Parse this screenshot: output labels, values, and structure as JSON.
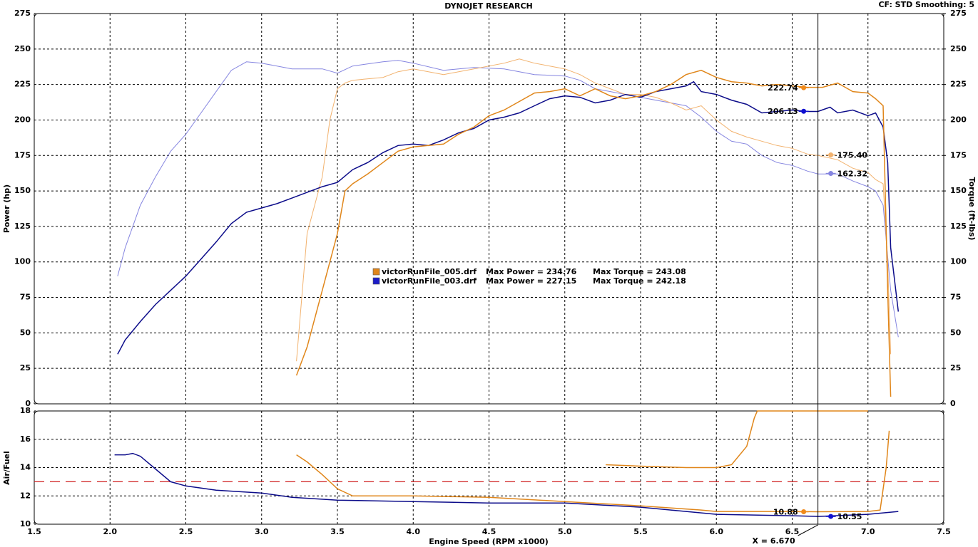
{
  "chart_data": [
    {
      "type": "line",
      "title": "DYNOJET RESEARCH",
      "subtitle": "CF: STD  Smoothing: 5",
      "ylabel": "Power (hp)",
      "y2label": "Torque (ft-lbs)",
      "xlim": [
        1.5,
        7.5
      ],
      "xticks": [
        1.5,
        2,
        2.5,
        3,
        3.5,
        4,
        4.5,
        5,
        5.5,
        6,
        6.5,
        7,
        7.5
      ],
      "ylim": [
        0,
        275
      ],
      "yticks": [
        0,
        25,
        50,
        75,
        100,
        125,
        150,
        175,
        200,
        225,
        250,
        275
      ],
      "y2lim": [
        0,
        275
      ],
      "y2ticks": [
        0,
        25,
        50,
        75,
        100,
        125,
        150,
        175,
        200,
        225,
        250,
        275
      ],
      "grid": true,
      "series": [
        {
          "color": "#8585e0",
          "width": 1,
          "axis": "y2",
          "x": [
            2.05,
            2.1,
            2.2,
            2.3,
            2.4,
            2.5,
            2.6,
            2.7,
            2.8,
            2.9,
            3.0,
            3.2,
            3.4,
            3.5,
            3.6,
            3.8,
            3.9,
            4.0,
            4.2,
            4.4,
            4.6,
            4.8,
            5.0,
            5.1,
            5.2,
            5.4,
            5.5,
            5.6,
            5.7,
            5.8,
            5.9,
            6.0,
            6.1,
            6.2,
            6.3,
            6.4,
            6.5,
            6.6,
            6.67,
            6.8,
            6.9,
            7.0,
            7.05,
            7.1,
            7.15,
            7.2
          ],
          "values": [
            90,
            110,
            140,
            160,
            178,
            190,
            205,
            220,
            235,
            241,
            240,
            236,
            236,
            233,
            238,
            241,
            242,
            240,
            235,
            237,
            236,
            232,
            231,
            228,
            222,
            218,
            216,
            214,
            212,
            210,
            202,
            192,
            185,
            183,
            175,
            170,
            168,
            164,
            162,
            162,
            157,
            153,
            150,
            140,
            80,
            47
          ]
        },
        {
          "color": "#f2b26e",
          "width": 1,
          "axis": "y2",
          "x": [
            3.23,
            3.3,
            3.4,
            3.45,
            3.5,
            3.55,
            3.6,
            3.8,
            3.9,
            4.0,
            4.2,
            4.4,
            4.6,
            4.7,
            4.8,
            5.0,
            5.1,
            5.2,
            5.3,
            5.4,
            5.5,
            5.6,
            5.7,
            5.8,
            5.9,
            6.0,
            6.1,
            6.2,
            6.3,
            6.4,
            6.5,
            6.6,
            6.67,
            6.8,
            6.9,
            7.0,
            7.05,
            7.1,
            7.13,
            7.15
          ],
          "values": [
            30,
            120,
            160,
            200,
            222,
            226,
            228,
            230,
            234,
            236,
            232,
            236,
            240,
            243,
            240,
            236,
            232,
            226,
            222,
            218,
            218,
            216,
            212,
            207,
            210,
            200,
            192,
            188,
            185,
            182,
            180,
            176,
            175,
            172,
            166,
            163,
            158,
            155,
            100,
            35
          ]
        },
        {
          "color": "#0c0c8a",
          "width": 1.5,
          "x": [
            2.05,
            2.1,
            2.2,
            2.3,
            2.4,
            2.5,
            2.6,
            2.7,
            2.8,
            2.9,
            3.0,
            3.1,
            3.2,
            3.3,
            3.4,
            3.5,
            3.6,
            3.7,
            3.8,
            3.9,
            4.0,
            4.1,
            4.2,
            4.3,
            4.4,
            4.5,
            4.6,
            4.7,
            4.8,
            4.9,
            5.0,
            5.1,
            5.2,
            5.3,
            5.4,
            5.5,
            5.6,
            5.7,
            5.8,
            5.85,
            5.9,
            6.0,
            6.1,
            6.2,
            6.3,
            6.4,
            6.5,
            6.6,
            6.67,
            6.75,
            6.8,
            6.9,
            7.0,
            7.05,
            7.1,
            7.13,
            7.15,
            7.2
          ],
          "values": [
            35,
            45,
            58,
            70,
            80,
            90,
            102,
            114,
            127,
            135,
            138,
            141,
            145,
            149,
            153,
            156,
            165,
            170,
            177,
            182,
            183,
            182,
            186,
            191,
            194,
            200,
            202,
            205,
            210,
            215,
            217,
            216,
            212,
            214,
            218,
            216,
            220,
            222,
            224,
            227,
            220,
            218,
            214,
            211,
            205,
            206,
            207,
            206,
            206,
            209,
            205,
            207,
            203,
            205,
            195,
            170,
            110,
            65
          ]
        },
        {
          "color": "#e0861a",
          "width": 1.5,
          "x": [
            3.23,
            3.3,
            3.4,
            3.5,
            3.55,
            3.6,
            3.7,
            3.8,
            3.9,
            4.0,
            4.1,
            4.2,
            4.3,
            4.4,
            4.5,
            4.6,
            4.7,
            4.8,
            4.9,
            5.0,
            5.1,
            5.2,
            5.3,
            5.4,
            5.5,
            5.6,
            5.7,
            5.8,
            5.9,
            6.0,
            6.1,
            6.2,
            6.3,
            6.4,
            6.5,
            6.6,
            6.7,
            6.8,
            6.9,
            7.0,
            7.05,
            7.1,
            7.13,
            7.15
          ],
          "values": [
            20,
            40,
            80,
            120,
            150,
            155,
            162,
            170,
            178,
            181,
            182,
            183,
            190,
            195,
            203,
            207,
            213,
            219,
            220,
            222,
            217,
            222,
            217,
            215,
            217,
            220,
            225,
            232,
            235,
            230,
            227,
            226,
            224,
            225,
            224,
            223,
            223,
            226,
            220,
            219,
            215,
            210,
            80,
            5
          ]
        }
      ],
      "legend": [
        {
          "color": "#e0861a",
          "file": "victorRunFile_005.drf",
          "power": "Max Power = 234.76",
          "torque": "Max Torque = 243.08"
        },
        {
          "color": "#1c1cc8",
          "file": "victorRunFile_003.drf",
          "power": "Max Power = 227.15",
          "torque": "Max Torque = 242.18"
        }
      ],
      "readouts": [
        {
          "value": 222.74,
          "color": "#f08a1c",
          "side": "left"
        },
        {
          "value": 206.13,
          "color": "#1010d0",
          "side": "left"
        },
        {
          "value": 175.4,
          "label": "175.40",
          "color": "#f2b26e",
          "side": "right",
          "axis": "y2"
        },
        {
          "value": 162.32,
          "color": "#8585e0",
          "side": "right",
          "axis": "y2"
        }
      ]
    },
    {
      "type": "line",
      "ylabel": "Air/Fuel",
      "xlabel": "Engine Speed (RPM x1000)",
      "xlim": [
        1.5,
        7.5
      ],
      "xticks": [
        1.5,
        {
          "value": 2,
          "label": "2.0"
        },
        2.5,
        {
          "value": 3,
          "label": "3.0"
        },
        3.5,
        {
          "value": 4,
          "label": "4.0"
        },
        4.5,
        {
          "value": 5,
          "label": "5.0"
        },
        5.5,
        {
          "value": 6,
          "label": "6.0"
        },
        6.5,
        {
          "value": 7,
          "label": "7.0"
        },
        7.5
      ],
      "ylim": [
        10,
        18
      ],
      "yticks": [
        10,
        12,
        14,
        16,
        18
      ],
      "grid": true,
      "reference_line": {
        "value": 13,
        "color": "#d02020"
      },
      "series": [
        {
          "color": "#0c0c8a",
          "width": 1.5,
          "x": [
            2.03,
            2.1,
            2.15,
            2.2,
            2.3,
            2.4,
            2.5,
            2.7,
            3.0,
            3.2,
            3.5,
            4.0,
            4.5,
            5.0,
            5.5,
            6.0,
            6.5,
            6.67,
            7.0,
            7.2
          ],
          "values": [
            14.9,
            14.9,
            15.0,
            14.8,
            13.9,
            13.0,
            12.7,
            12.4,
            12.2,
            11.9,
            11.7,
            11.6,
            11.5,
            11.5,
            11.2,
            10.7,
            10.6,
            10.55,
            10.7,
            10.9
          ]
        },
        {
          "color": "#e0861a",
          "width": 1.5,
          "x": [
            3.23,
            3.3,
            3.4,
            3.5,
            3.6,
            4.0,
            4.5,
            5.0,
            5.5,
            5.9,
            6.0,
            6.5,
            6.67,
            7.0,
            7.08,
            7.12,
            7.14
          ],
          "values": [
            14.9,
            14.4,
            13.5,
            12.5,
            12.0,
            12.0,
            11.9,
            11.6,
            11.3,
            11.0,
            10.9,
            10.9,
            10.88,
            10.9,
            11.0,
            14.0,
            16.6
          ]
        },
        {
          "color": "#e0861a",
          "width": 1.5,
          "x": [
            5.27,
            5.5,
            5.8,
            6.0,
            6.1,
            6.2,
            6.25,
            6.27,
            7.0
          ],
          "values": [
            14.2,
            14.1,
            14.0,
            14.0,
            14.2,
            15.5,
            17.5,
            18,
            18
          ]
        }
      ],
      "readouts": [
        {
          "value": 10.88,
          "color": "#f08a1c",
          "side": "left"
        },
        {
          "value": 10.55,
          "color": "#1010d0",
          "side": "right"
        }
      ],
      "cursor": {
        "value": 6.67,
        "label": "X = 6.670"
      }
    }
  ]
}
